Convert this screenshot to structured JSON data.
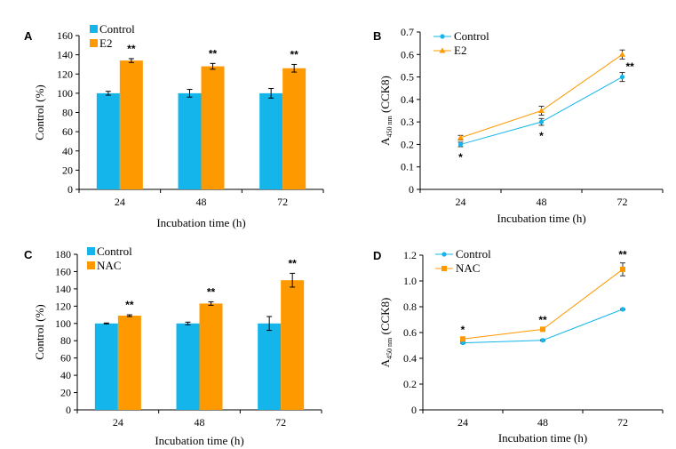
{
  "colors": {
    "control": "#13B5EA",
    "treatment": "#FF9900"
  },
  "chart_data": [
    {
      "panel": "A",
      "type": "bar",
      "title": "",
      "xlabel": "Incubation time (h)",
      "ylabel": "Control (%)",
      "categories": [
        "24",
        "48",
        "72"
      ],
      "ylim": [
        0,
        160
      ],
      "yticks": [
        "0",
        "20",
        "40",
        "60",
        "80",
        "100",
        "120",
        "140",
        "160"
      ],
      "legend_position": "top-left",
      "series": [
        {
          "name": "Control",
          "values": [
            100,
            100,
            100
          ],
          "errors": [
            2,
            4,
            5
          ]
        },
        {
          "name": "E2",
          "values": [
            134,
            128,
            126
          ],
          "errors": [
            2,
            3,
            4
          ]
        }
      ],
      "annotations": [
        {
          "category": "24",
          "series": "E2",
          "text": "**"
        },
        {
          "category": "48",
          "series": "E2",
          "text": "**"
        },
        {
          "category": "72",
          "series": "E2",
          "text": "**"
        }
      ]
    },
    {
      "panel": "B",
      "type": "line",
      "title": "",
      "xlabel": "Incubation time (h)",
      "ylabel_main": "A",
      "ylabel_sub": "450 nm",
      "ylabel_rest": "(CCK8)",
      "categories": [
        "24",
        "48",
        "72"
      ],
      "ylim": [
        0,
        0.7
      ],
      "yticks": [
        "0",
        "0.1",
        "0.2",
        "0.3",
        "0.4",
        "0.5",
        "0.6",
        "0.7"
      ],
      "legend_position": "top-left",
      "series": [
        {
          "name": "Control",
          "marker": "circle",
          "values": [
            0.2,
            0.3,
            0.5
          ],
          "errors": [
            0.01,
            0.015,
            0.02
          ]
        },
        {
          "name": "E2",
          "marker": "triangle",
          "values": [
            0.23,
            0.35,
            0.6
          ],
          "errors": [
            0.01,
            0.02,
            0.02
          ]
        }
      ],
      "annotations": [
        {
          "category": "24",
          "text": "*",
          "placement": "below"
        },
        {
          "category": "48",
          "text": "*",
          "placement": "below"
        },
        {
          "category": "72",
          "text": "**",
          "placement": "right"
        }
      ]
    },
    {
      "panel": "C",
      "type": "bar",
      "title": "",
      "xlabel": "Incubation time (h)",
      "ylabel": "Control (%)",
      "categories": [
        "24",
        "48",
        "72"
      ],
      "ylim": [
        0,
        180
      ],
      "yticks": [
        "0",
        "20",
        "40",
        "60",
        "80",
        "100",
        "120",
        "140",
        "160",
        "180"
      ],
      "legend_position": "top-left",
      "series": [
        {
          "name": "Control",
          "values": [
            100,
            100,
            100
          ],
          "errors": [
            0.5,
            1.5,
            8
          ]
        },
        {
          "name": "NAC",
          "values": [
            109,
            123,
            150
          ],
          "errors": [
            1,
            2,
            8
          ]
        }
      ],
      "annotations": [
        {
          "category": "24",
          "series": "NAC",
          "text": "**"
        },
        {
          "category": "48",
          "series": "NAC",
          "text": "**"
        },
        {
          "category": "72",
          "series": "NAC",
          "text": "**"
        }
      ]
    },
    {
      "panel": "D",
      "type": "line",
      "title": "",
      "xlabel": "Incubation time (h)",
      "ylabel_main": "A",
      "ylabel_sub": "450 nm",
      "ylabel_rest": "(CCK8)",
      "categories": [
        "24",
        "48",
        "72"
      ],
      "ylim": [
        0,
        1.2
      ],
      "yticks": [
        "0",
        "0.2",
        "0.4",
        "0.6",
        "0.8",
        "1.0",
        "1.2"
      ],
      "legend_position": "top-left",
      "series": [
        {
          "name": "Control",
          "marker": "circle",
          "values": [
            0.52,
            0.54,
            0.78
          ],
          "errors": [
            0.005,
            0.005,
            0.005
          ]
        },
        {
          "name": "NAC",
          "marker": "square",
          "values": [
            0.55,
            0.625,
            1.09
          ],
          "errors": [
            0.01,
            0.01,
            0.05
          ]
        }
      ],
      "annotations": [
        {
          "category": "24",
          "text": "*",
          "placement": "above"
        },
        {
          "category": "48",
          "text": "**",
          "placement": "above"
        },
        {
          "category": "72",
          "text": "**",
          "placement": "above"
        }
      ]
    }
  ]
}
